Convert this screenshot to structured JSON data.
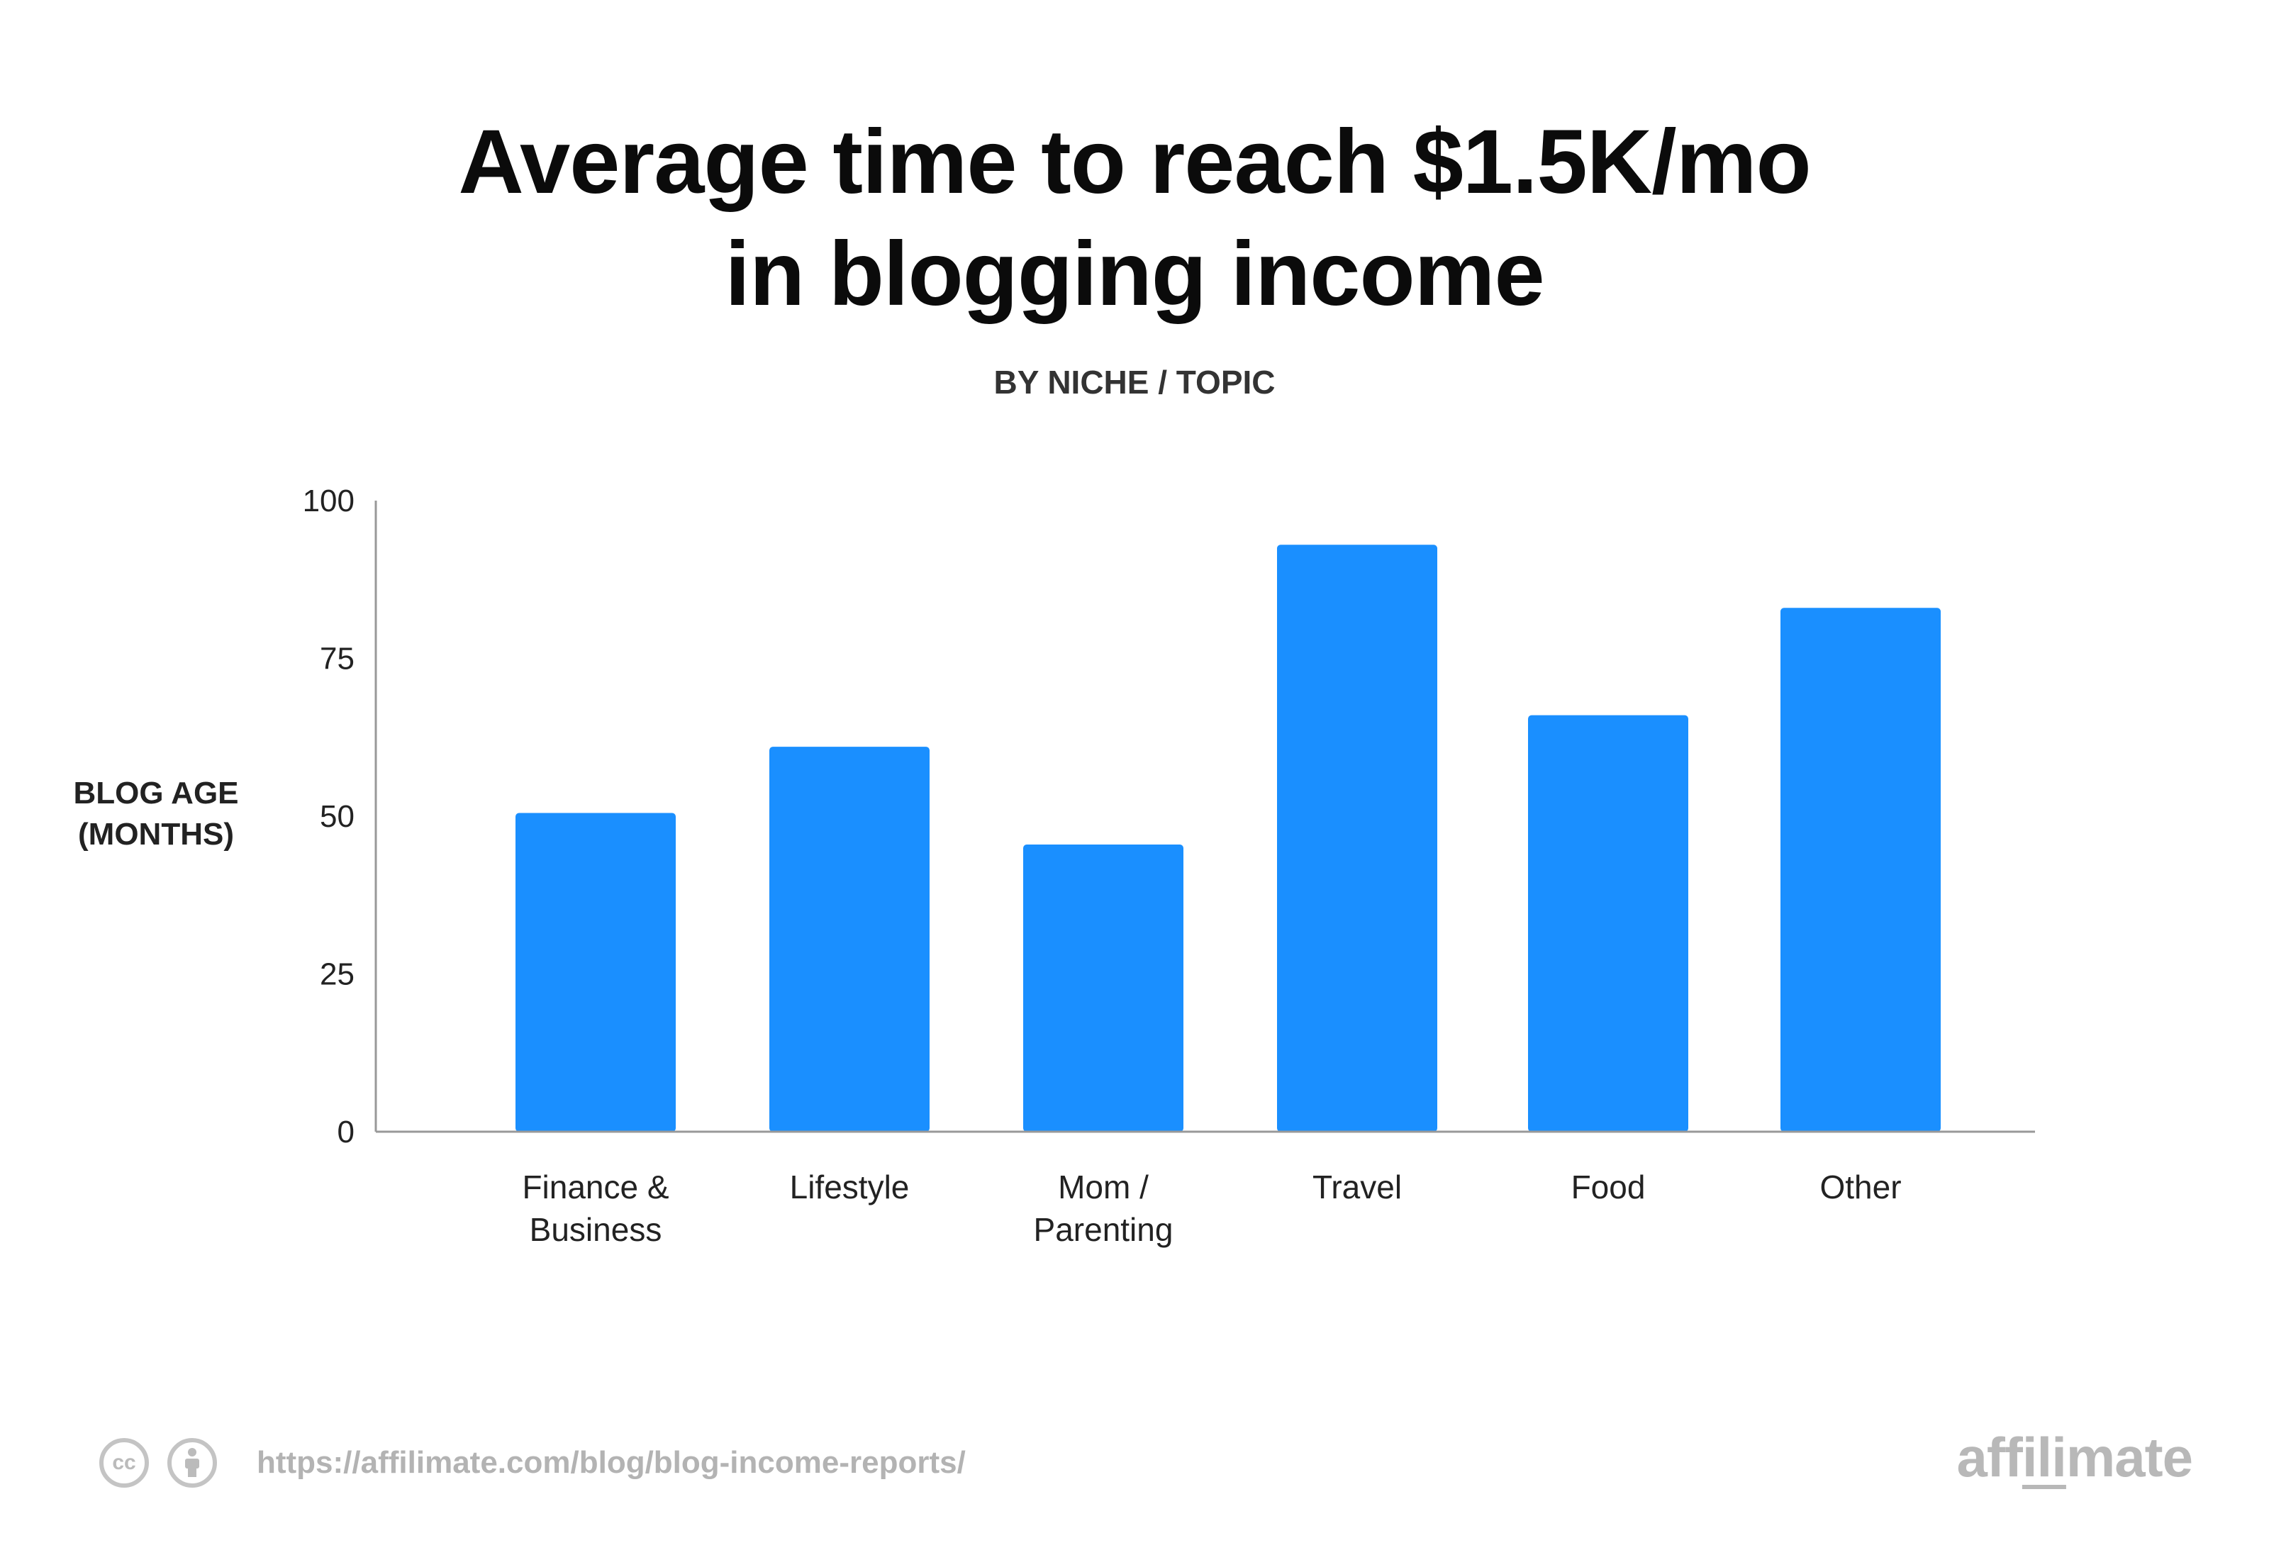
{
  "header": {
    "title_lines": [
      "Average time to reach $1.5K/mo",
      "in blogging income"
    ],
    "subtitle": "BY NICHE / TOPIC"
  },
  "footer": {
    "source_url": "https://affilimate.com/blog/blog-income-reports/",
    "license_icons": [
      "creative-commons-icon",
      "attribution-icon"
    ],
    "license_icon_text": "cc",
    "brand_parts": [
      "aff",
      "ili",
      "mate"
    ]
  },
  "colors": {
    "bar": "#1a8fff",
    "axis": "#999999"
  },
  "chart_data": {
    "type": "bar",
    "title": "Average time to reach $1.5K/mo in blogging income",
    "subtitle": "BY NICHE / TOPIC",
    "ylabel_lines": [
      "BLOG AGE",
      "(MONTHS)"
    ],
    "ylabel": "BLOG AGE (MONTHS)",
    "xlabel": "",
    "ylim": [
      0,
      100
    ],
    "yticks": [
      0,
      25,
      50,
      75,
      100
    ],
    "grid": false,
    "categories": [
      [
        "Finance &",
        "Business"
      ],
      [
        "Lifestyle"
      ],
      [
        "Mom /",
        "Parenting"
      ],
      [
        "Travel"
      ],
      [
        "Food"
      ],
      [
        "Other"
      ]
    ],
    "values": [
      50.5,
      61,
      45.5,
      93,
      66,
      83
    ]
  }
}
